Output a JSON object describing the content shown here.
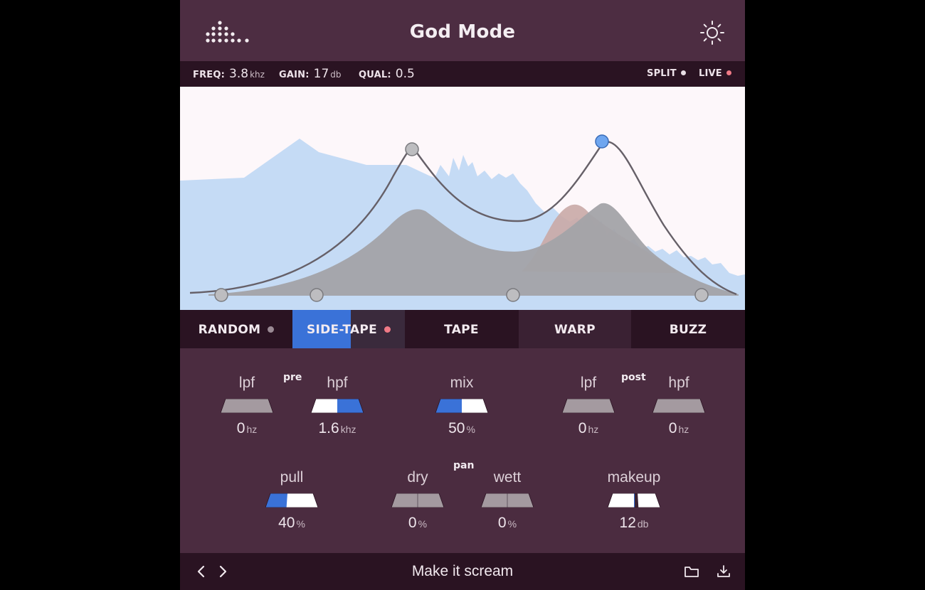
{
  "app": {
    "title": "God Mode"
  },
  "header": {
    "logo_icon": "dot-grid-logo",
    "theme_icon": "sun-icon"
  },
  "status": {
    "freq": {
      "label": "FREQ:",
      "value": "3.8",
      "unit": "khz"
    },
    "gain": {
      "label": "GAIN:",
      "value": "17",
      "unit": "db"
    },
    "qual": {
      "label": "QUAL:",
      "value": "0.5"
    },
    "split": {
      "label": "SPLIT",
      "dot_color": "#e8dfe5"
    },
    "live": {
      "label": "LIVE",
      "dot_color": "#f07a86"
    }
  },
  "modes": [
    {
      "label": "RANDOM",
      "active": false,
      "dot_color": "#9a8a94"
    },
    {
      "label": "SIDE-TAPE",
      "active": true,
      "dot_color": "#f07a86"
    },
    {
      "label": "TAPE",
      "active": false
    },
    {
      "label": "WARP",
      "active": false
    },
    {
      "label": "BUZZ",
      "active": false
    }
  ],
  "controls": {
    "pre_tag": "pre",
    "post_tag": "post",
    "pan_tag": "pan",
    "pre_lpf": {
      "label": "lpf",
      "value": "0",
      "unit": "hz",
      "level": 0
    },
    "pre_hpf": {
      "label": "hpf",
      "value": "1.6",
      "unit": "khz",
      "level": 0.5
    },
    "mix": {
      "label": "mix",
      "value": "50",
      "unit": "%",
      "level": 0.5
    },
    "post_lpf": {
      "label": "lpf",
      "value": "0",
      "unit": "hz",
      "level": 0
    },
    "post_hpf": {
      "label": "hpf",
      "value": "0",
      "unit": "hz",
      "level": 0
    },
    "pull": {
      "label": "pull",
      "value": "40",
      "unit": "%",
      "level": 0.4
    },
    "dry": {
      "label": "dry",
      "value": "0",
      "unit": "%",
      "level": 0
    },
    "wett": {
      "label": "wett",
      "value": "0",
      "unit": "%",
      "level": 0
    },
    "makeup": {
      "label": "makeup",
      "value": "12",
      "unit": "db",
      "level": 0.55
    }
  },
  "footer": {
    "preset_name": "Make it scream",
    "prev_icon": "chevron-left-icon",
    "next_icon": "chevron-right-icon",
    "folder_icon": "folder-icon",
    "download_icon": "download-icon"
  },
  "colors": {
    "accent_blue": "#3a72d8",
    "spectrum_blue": "#c5dbf5",
    "live_red": "#f07a86",
    "panel": "#4b2c40",
    "bar": "#2a1322"
  }
}
